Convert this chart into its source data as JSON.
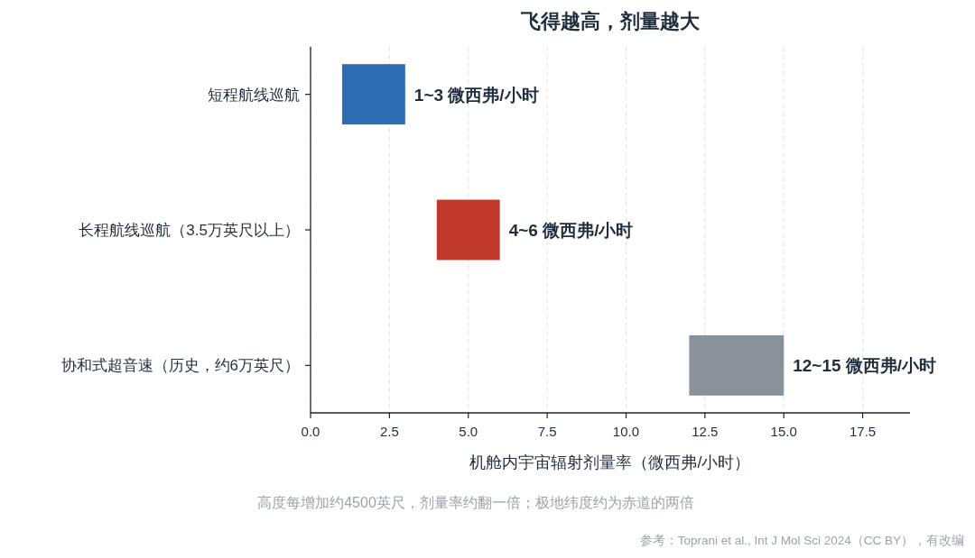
{
  "chart_data": {
    "type": "bar",
    "orientation": "horizontal",
    "title": "飞得越高，剂量越大",
    "xlabel": "机舱内宇宙辐射剂量率（微西弗/小时）",
    "categories": [
      "短程航线巡航",
      "长程航线巡航（3.5万英尺以上）",
      "协和式超音速（历史，约6万英尺）"
    ],
    "base": [
      1,
      4,
      12
    ],
    "values": [
      2,
      2,
      3
    ],
    "colors": [
      "#2e6db4",
      "#c0392b",
      "#8a9299"
    ],
    "xlim": [
      0,
      19
    ],
    "xticks": [
      {
        "value": 0,
        "label": "0.0"
      },
      2.5,
      {
        "value": 5,
        "label": "5.0"
      },
      7.5,
      {
        "value": 10,
        "label": "10.0"
      },
      12.5,
      {
        "value": 15,
        "label": "15.0"
      },
      17.5
    ],
    "grid": "x",
    "annotations": [
      {
        "text": "1~3 微西弗/小时",
        "x": 3,
        "y": "短程航线巡航"
      },
      {
        "text": "4~6 微西弗/小时",
        "x": 6,
        "y": "长程航线巡航（3.5万英尺以上）"
      },
      {
        "text": "12~15 微西弗/小时",
        "x": 15,
        "y": "协和式超音速（历史，约6万英尺）"
      },
      "高度每增加约4500英尺，剂量率约翻一倍；极地纬度约为赤道的两倍",
      "参考：Toprani et al., Int J Mol Sci 2024（CC BY），有改编"
    ]
  }
}
